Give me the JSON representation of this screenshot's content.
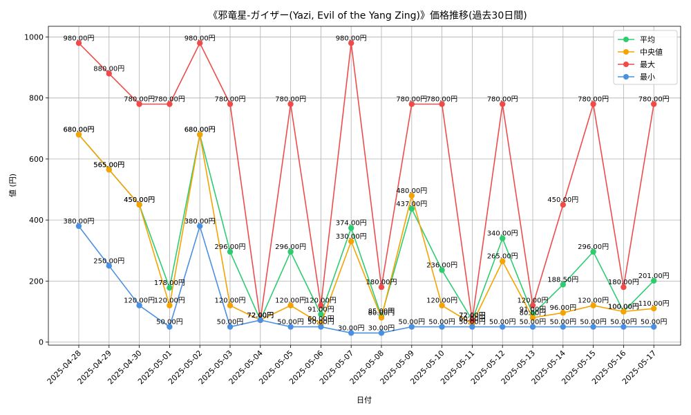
{
  "chart_data": {
    "type": "line",
    "title": "《邪竜星-ガイザー(Yazi, Evil of the Yang Zing)》価格推移(過去30日間)",
    "xlabel": "日付",
    "ylabel": "値 (円)",
    "ylim": [
      -10,
      1035
    ],
    "yticks": [
      0,
      200,
      400,
      600,
      800,
      1000
    ],
    "grid": true,
    "legend_position": "top-right",
    "label_suffix": "円",
    "categories": [
      "2025-04-28",
      "2025-04-29",
      "2025-04-30",
      "2025-05-01",
      "2025-05-02",
      "2025-05-03",
      "2025-05-04",
      "2025-05-05",
      "2025-05-06",
      "2025-05-07",
      "2025-05-08",
      "2025-05-09",
      "2025-05-10",
      "2025-05-11",
      "2025-05-12",
      "2025-05-13",
      "2025-05-14",
      "2025-05-15",
      "2025-05-16",
      "2025-05-17"
    ],
    "series": [
      {
        "name": "平均",
        "color": "#2ecc71",
        "values": [
          680,
          565,
          450,
          178,
          680,
          296,
          72,
          296,
          91,
          374,
          85,
          437,
          236,
          72,
          340,
          91,
          188.5,
          296,
          100,
          201
        ]
      },
      {
        "name": "中央値",
        "color": "#f5a300",
        "values": [
          680,
          565,
          450,
          120,
          680,
          120,
          72,
          120,
          60,
          330,
          80,
          480,
          120,
          60,
          265,
          80,
          96,
          120,
          100,
          110
        ]
      },
      {
        "name": "最大",
        "color": "#ef4b4b",
        "values": [
          980,
          880,
          780,
          780,
          980,
          780,
          72,
          780,
          120,
          980,
          180,
          780,
          780,
          72,
          780,
          120,
          450,
          780,
          180,
          780
        ]
      },
      {
        "name": "最小",
        "color": "#4a90e2",
        "values": [
          380,
          250,
          120,
          50,
          380,
          50,
          72,
          50,
          50,
          30,
          30,
          50,
          50,
          50,
          50,
          50,
          50,
          50,
          50,
          50
        ]
      }
    ]
  }
}
